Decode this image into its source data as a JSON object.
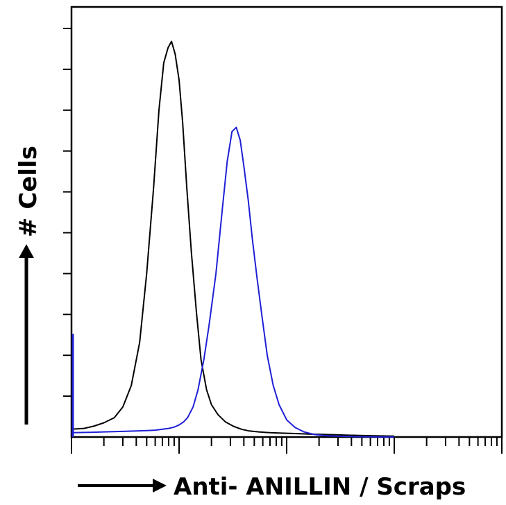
{
  "chart_data": {
    "type": "line",
    "xlabel": "Anti- ANILLIN / Scraps",
    "ylabel": "# Cells",
    "x_scale": "log",
    "xlim": [
      1,
      10000
    ],
    "ylim": [
      0,
      1
    ],
    "grid": false,
    "legend": "none",
    "series": [
      {
        "color": "#000000",
        "x": [
          1,
          1.3,
          1.6,
          2,
          2.5,
          3,
          3.6,
          4.3,
          5,
          5.8,
          6.5,
          7.2,
          7.9,
          8.5,
          9.2,
          10,
          10.8,
          11.8,
          13,
          14.5,
          16,
          18,
          20,
          23,
          27,
          32,
          38,
          45,
          55,
          70,
          90,
          120,
          160,
          220,
          300,
          400,
          600,
          1000
        ],
        "y": [
          0.018,
          0.02,
          0.025,
          0.033,
          0.045,
          0.07,
          0.12,
          0.22,
          0.38,
          0.58,
          0.76,
          0.87,
          0.905,
          0.92,
          0.89,
          0.83,
          0.73,
          0.58,
          0.43,
          0.29,
          0.18,
          0.11,
          0.075,
          0.052,
          0.035,
          0.025,
          0.018,
          0.014,
          0.012,
          0.01,
          0.009,
          0.008,
          0.007,
          0.006,
          0.005,
          0.004,
          0.003,
          0.002
        ]
      },
      {
        "color": "#1f1fd6",
        "x": [
          1,
          1.5,
          2,
          3,
          4,
          5,
          6,
          7,
          8,
          9,
          10,
          11,
          12,
          13.5,
          15,
          17,
          19,
          22,
          25,
          28,
          31,
          34,
          37,
          40,
          44,
          48,
          53,
          59,
          66,
          75,
          85,
          100,
          120,
          145,
          180,
          230,
          300,
          400,
          600,
          1000
        ],
        "y": [
          0.01,
          0.011,
          0.012,
          0.013,
          0.014,
          0.015,
          0.016,
          0.018,
          0.02,
          0.023,
          0.028,
          0.035,
          0.045,
          0.07,
          0.11,
          0.18,
          0.26,
          0.38,
          0.52,
          0.64,
          0.71,
          0.72,
          0.69,
          0.63,
          0.55,
          0.46,
          0.37,
          0.28,
          0.19,
          0.12,
          0.075,
          0.04,
          0.022,
          0.012,
          0.006,
          0.003,
          0.002,
          0.001,
          0.0005,
          0
        ]
      }
    ]
  }
}
